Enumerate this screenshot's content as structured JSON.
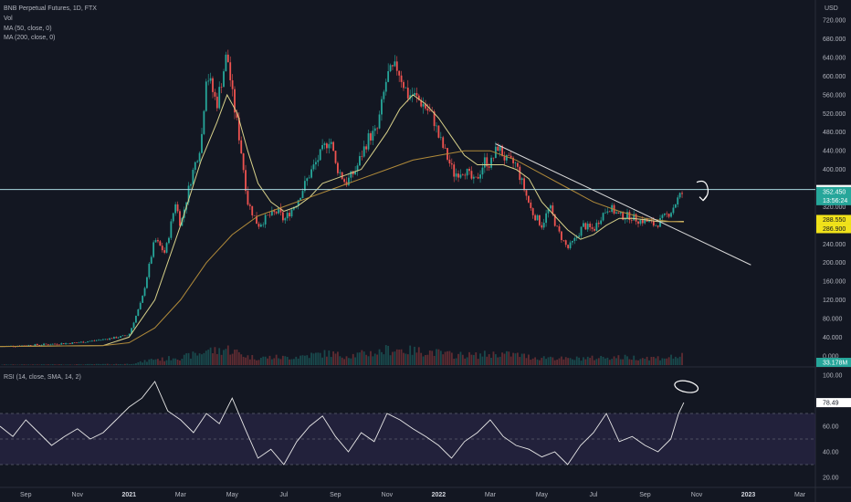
{
  "legend": {
    "title": "BNB Perpetual Futures, 1D, FTX",
    "vol": "Vol",
    "ma50": "MA (50, close, 0)",
    "ma200": "MA (200, close, 0)",
    "rsi": "RSI (14, close, SMA, 14, 2)"
  },
  "currency": "USD",
  "price_labels": {
    "hline": "356.750",
    "last": "352.450",
    "countdown": "13:56:24",
    "ma50": "288.550",
    "ma200": "286.900",
    "volume": "33.178M",
    "rsi": "78.49"
  },
  "colors": {
    "background": "#131722",
    "up": "#26a69a",
    "down": "#ef5350",
    "ma50": "#d8d18a",
    "ma200": "#b08a3a",
    "rsi_line": "#e8e8e8",
    "rsi_band": "#2a2646",
    "hline": "#a9d8e0",
    "label_yellow": "#f0e21a"
  },
  "chart_data": [
    {
      "type": "line",
      "title": "BNB Perpetual Futures, 1D, FTX",
      "ylabel": "USD",
      "ylim": [
        -20,
        740
      ],
      "y_ticks": [
        "720.000",
        "680.000",
        "640.000",
        "600.000",
        "560.000",
        "520.000",
        "480.000",
        "440.000",
        "400.000",
        "360.000",
        "320.000",
        "280.000",
        "240.000",
        "200.000",
        "160.000",
        "120.000",
        "80.000",
        "40.000",
        "0.000"
      ],
      "x_ticks": [
        {
          "t": 1,
          "label": "Sep",
          "bold": false
        },
        {
          "t": 3,
          "label": "Nov",
          "bold": false
        },
        {
          "t": 5,
          "label": "2021",
          "bold": true
        },
        {
          "t": 7,
          "label": "Mar",
          "bold": false
        },
        {
          "t": 9,
          "label": "May",
          "bold": false
        },
        {
          "t": 11,
          "label": "Jul",
          "bold": false
        },
        {
          "t": 13,
          "label": "Sep",
          "bold": false
        },
        {
          "t": 15,
          "label": "Nov",
          "bold": false
        },
        {
          "t": 17,
          "label": "2022",
          "bold": true
        },
        {
          "t": 19,
          "label": "Mar",
          "bold": false
        },
        {
          "t": 21,
          "label": "May",
          "bold": false
        },
        {
          "t": 23,
          "label": "Jul",
          "bold": false
        },
        {
          "t": 25,
          "label": "Sep",
          "bold": false
        },
        {
          "t": 27,
          "label": "Nov",
          "bold": false
        },
        {
          "t": 29,
          "label": "2023",
          "bold": true
        },
        {
          "t": 31,
          "label": "Mar",
          "bold": false
        }
      ],
      "series": [
        {
          "name": "BNB Perpetual Futures, 1D, FTX",
          "points": [
            [
              0,
              20
            ],
            [
              1,
              22
            ],
            [
              2,
              25
            ],
            [
              3,
              28
            ],
            [
              4,
              35
            ],
            [
              4.6,
              40
            ],
            [
              5,
              45
            ],
            [
              5.5,
              120
            ],
            [
              6,
              250
            ],
            [
              6.4,
              220
            ],
            [
              6.8,
              330
            ],
            [
              7,
              280
            ],
            [
              7.4,
              380
            ],
            [
              7.8,
              460
            ],
            [
              8,
              610
            ],
            [
              8.4,
              540
            ],
            [
              8.8,
              650
            ],
            [
              9,
              560
            ],
            [
              9.3,
              460
            ],
            [
              9.6,
              330
            ],
            [
              10,
              280
            ],
            [
              10.4,
              300
            ],
            [
              10.8,
              310
            ],
            [
              11,
              290
            ],
            [
              11.5,
              330
            ],
            [
              12,
              390
            ],
            [
              12.4,
              430
            ],
            [
              12.8,
              470
            ],
            [
              13,
              410
            ],
            [
              13.4,
              370
            ],
            [
              13.8,
              400
            ],
            [
              14,
              430
            ],
            [
              14.3,
              470
            ],
            [
              14.6,
              480
            ],
            [
              15,
              600
            ],
            [
              15.4,
              620
            ],
            [
              15.8,
              560
            ],
            [
              16,
              560
            ],
            [
              16.4,
              540
            ],
            [
              16.8,
              510
            ],
            [
              17,
              470
            ],
            [
              17.3,
              430
            ],
            [
              17.6,
              390
            ],
            [
              18,
              400
            ],
            [
              18.4,
              370
            ],
            [
              18.8,
              420
            ],
            [
              19,
              410
            ],
            [
              19.3,
              450
            ],
            [
              19.6,
              420
            ],
            [
              20,
              410
            ],
            [
              20.3,
              360
            ],
            [
              20.6,
              310
            ],
            [
              21,
              280
            ],
            [
              21.3,
              320
            ],
            [
              21.6,
              270
            ],
            [
              22,
              230
            ],
            [
              22.3,
              250
            ],
            [
              22.6,
              280
            ],
            [
              23,
              270
            ],
            [
              23.3,
              300
            ],
            [
              23.6,
              320
            ],
            [
              24,
              300
            ],
            [
              24.4,
              300
            ],
            [
              24.8,
              290
            ],
            [
              25,
              290
            ],
            [
              25.4,
              280
            ],
            [
              25.8,
              300
            ],
            [
              26,
              310
            ],
            [
              26.3,
              340
            ],
            [
              26.5,
              352.45
            ]
          ]
        },
        {
          "name": "MA (50, close, 0)",
          "points": [
            [
              0,
              20
            ],
            [
              4,
              22
            ],
            [
              5,
              40
            ],
            [
              6,
              120
            ],
            [
              7,
              280
            ],
            [
              7.8,
              420
            ],
            [
              8.4,
              500
            ],
            [
              8.8,
              560
            ],
            [
              9.2,
              520
            ],
            [
              9.6,
              440
            ],
            [
              10,
              370
            ],
            [
              10.5,
              330
            ],
            [
              11,
              310
            ],
            [
              11.5,
              320
            ],
            [
              12,
              340
            ],
            [
              12.5,
              370
            ],
            [
              13,
              380
            ],
            [
              13.5,
              390
            ],
            [
              14,
              400
            ],
            [
              14.5,
              440
            ],
            [
              15,
              480
            ],
            [
              15.5,
              530
            ],
            [
              16,
              560
            ],
            [
              16.5,
              540
            ],
            [
              17,
              510
            ],
            [
              17.5,
              470
            ],
            [
              18,
              430
            ],
            [
              18.5,
              410
            ],
            [
              19,
              410
            ],
            [
              19.5,
              410
            ],
            [
              20,
              400
            ],
            [
              20.5,
              380
            ],
            [
              21,
              330
            ],
            [
              21.5,
              300
            ],
            [
              22,
              270
            ],
            [
              22.5,
              250
            ],
            [
              23,
              260
            ],
            [
              23.5,
              280
            ],
            [
              24,
              295
            ],
            [
              24.5,
              295
            ],
            [
              25,
              292
            ],
            [
              25.5,
              288
            ],
            [
              26,
              288
            ],
            [
              26.5,
              288.55
            ]
          ]
        },
        {
          "name": "MA (200, close, 0)",
          "points": [
            [
              0,
              20
            ],
            [
              4,
              22
            ],
            [
              5,
              28
            ],
            [
              6,
              60
            ],
            [
              7,
              120
            ],
            [
              8,
              200
            ],
            [
              9,
              260
            ],
            [
              10,
              300
            ],
            [
              11,
              320
            ],
            [
              12,
              340
            ],
            [
              13,
              360
            ],
            [
              14,
              380
            ],
            [
              15,
              400
            ],
            [
              16,
              420
            ],
            [
              17,
              430
            ],
            [
              18,
              440
            ],
            [
              19,
              440
            ],
            [
              20,
              420
            ],
            [
              21,
              390
            ],
            [
              22,
              360
            ],
            [
              23,
              330
            ],
            [
              24,
              310
            ],
            [
              25,
              295
            ],
            [
              26,
              288
            ],
            [
              26.5,
              286.9
            ]
          ]
        }
      ]
    },
    {
      "type": "line",
      "title": "RSI (14, close, SMA, 14, 2)",
      "ylim": [
        15,
        105
      ],
      "y_ticks": [
        "100.00",
        "80.00",
        "60.00",
        "40.00",
        "20.00"
      ],
      "band": [
        30,
        70
      ],
      "series": [
        {
          "name": "RSI (14, close, SMA, 14, 2)",
          "points": [
            [
              0,
              60
            ],
            [
              0.5,
              52
            ],
            [
              1,
              65
            ],
            [
              1.5,
              55
            ],
            [
              2,
              45
            ],
            [
              2.5,
              52
            ],
            [
              3,
              58
            ],
            [
              3.5,
              50
            ],
            [
              4,
              55
            ],
            [
              4.5,
              65
            ],
            [
              5,
              75
            ],
            [
              5.5,
              82
            ],
            [
              6,
              95
            ],
            [
              6.5,
              72
            ],
            [
              7,
              65
            ],
            [
              7.5,
              55
            ],
            [
              8,
              70
            ],
            [
              8.5,
              62
            ],
            [
              9,
              82
            ],
            [
              9.5,
              58
            ],
            [
              10,
              35
            ],
            [
              10.5,
              42
            ],
            [
              11,
              30
            ],
            [
              11.5,
              48
            ],
            [
              12,
              60
            ],
            [
              12.5,
              68
            ],
            [
              13,
              52
            ],
            [
              13.5,
              40
            ],
            [
              14,
              55
            ],
            [
              14.5,
              48
            ],
            [
              15,
              70
            ],
            [
              15.5,
              65
            ],
            [
              16,
              58
            ],
            [
              16.5,
              52
            ],
            [
              17,
              45
            ],
            [
              17.5,
              35
            ],
            [
              18,
              48
            ],
            [
              18.5,
              55
            ],
            [
              19,
              65
            ],
            [
              19.5,
              52
            ],
            [
              20,
              45
            ],
            [
              20.5,
              42
            ],
            [
              21,
              36
            ],
            [
              21.5,
              40
            ],
            [
              22,
              30
            ],
            [
              22.5,
              45
            ],
            [
              23,
              55
            ],
            [
              23.5,
              70
            ],
            [
              24,
              48
            ],
            [
              24.5,
              52
            ],
            [
              25,
              45
            ],
            [
              25.5,
              40
            ],
            [
              26,
              50
            ],
            [
              26.3,
              70
            ],
            [
              26.5,
              78.49
            ]
          ]
        }
      ]
    }
  ]
}
